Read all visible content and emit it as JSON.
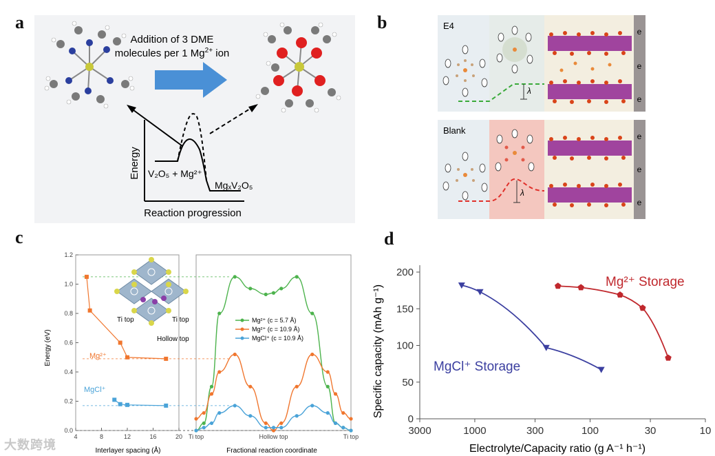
{
  "panels": {
    "a": {
      "letter": "a",
      "arrow_text_line1": "Addition of 3 DME",
      "arrow_text_line2_prefix": "molecules per 1 Mg",
      "arrow_text_line2_sup": "2+",
      "arrow_text_line2_suffix": " ion",
      "y_axis_label": "Energy",
      "x_axis_label": "Reaction progression",
      "reactant_label": "V₂O₅ + Mg²⁺",
      "product_label": "MgₓV₂O₅"
    },
    "b": {
      "letter": "b",
      "top_label": "E4",
      "bottom_label": "Blank",
      "electron_label": "e",
      "lambda_label": "λ"
    },
    "c": {
      "letter": "c",
      "y_axis_label": "Energy (eV)",
      "x_axis_left_label": "Interlayer spacing (Å)",
      "x_axis_right_label": "Fractional reaction coordinate",
      "ti_top_1": "Ti top",
      "ti_top_2": "Ti top",
      "hollow_top": "Hollow top",
      "mg_label": "Mg²⁺",
      "mgcl_label": "MgCl⁺",
      "right_x_ticks": [
        "Ti top",
        "Hollow top",
        "Ti top"
      ],
      "colors": {
        "green": "#4db34d",
        "orange": "#f0762e",
        "blue": "#4aa3d8"
      }
    },
    "d": {
      "letter": "d",
      "mg_label": "Mg²⁺ Storage",
      "mgcl_label": "MgCl⁺ Storage",
      "colors": {
        "mg": "#c0282d",
        "mgcl": "#3b3fa0"
      }
    }
  },
  "watermark": "大数跨境",
  "chart_data": [
    {
      "id": "c-left",
      "type": "scatter",
      "title": "",
      "xlabel": "Interlayer spacing (Å)",
      "ylabel": "Energy (eV)",
      "xlim": [
        4,
        20
      ],
      "ylim": [
        0,
        1.2
      ],
      "x_ticks": [
        4,
        8,
        12,
        16,
        20
      ],
      "y_ticks": [
        0.0,
        0.2,
        0.4,
        0.6,
        0.8,
        1.0,
        1.2
      ],
      "series": [
        {
          "name": "Mg²⁺",
          "color": "#f0762e",
          "x": [
            5.7,
            6.2,
            10.9,
            12.0,
            18.0
          ],
          "y": [
            1.05,
            0.82,
            0.6,
            0.5,
            0.49
          ]
        },
        {
          "name": "MgCl⁺",
          "color": "#4aa3d8",
          "x": [
            10.0,
            10.9,
            12.0,
            18.0
          ],
          "y": [
            0.21,
            0.18,
            0.175,
            0.17
          ]
        }
      ]
    },
    {
      "id": "c-right",
      "type": "line",
      "title": "",
      "xlabel": "Fractional reaction coordinate",
      "ylabel": "Energy (eV)",
      "xlim": [
        0,
        1
      ],
      "ylim": [
        0,
        1.2
      ],
      "legend": [
        "Mg²⁺ (c = 5.7 Å)",
        "Mg²⁺ (c = 10.9 Å)",
        "MgCl⁺ (c = 10.9 Å)"
      ],
      "series": [
        {
          "name": "Mg²⁺ (c = 5.7 Å)",
          "color": "#4db34d",
          "x": [
            0,
            0.05,
            0.1,
            0.15,
            0.25,
            0.35,
            0.45,
            0.5,
            0.55,
            0.65,
            0.75,
            0.85,
            0.9,
            0.95,
            1.0
          ],
          "y": [
            0,
            0.05,
            0.3,
            0.8,
            1.05,
            0.97,
            0.93,
            0.94,
            0.97,
            1.05,
            0.8,
            0.3,
            0.05,
            0.02,
            0
          ]
        },
        {
          "name": "Mg²⁺ (c = 10.9 Å)",
          "color": "#f0762e",
          "x": [
            0,
            0.05,
            0.1,
            0.15,
            0.25,
            0.35,
            0.45,
            0.5,
            0.55,
            0.65,
            0.75,
            0.85,
            0.9,
            0.95,
            1.0
          ],
          "y": [
            0.08,
            0.12,
            0.25,
            0.4,
            0.52,
            0.3,
            0.05,
            0.0,
            0.05,
            0.3,
            0.52,
            0.4,
            0.25,
            0.12,
            0.08
          ]
        },
        {
          "name": "MgCl⁺ (c = 10.9 Å)",
          "color": "#4aa3d8",
          "x": [
            0,
            0.05,
            0.1,
            0.15,
            0.25,
            0.35,
            0.45,
            0.5,
            0.55,
            0.65,
            0.75,
            0.85,
            0.9,
            0.95,
            1.0
          ],
          "y": [
            0,
            0.02,
            0.05,
            0.12,
            0.17,
            0.1,
            0.02,
            0.02,
            0.02,
            0.1,
            0.17,
            0.12,
            0.05,
            0.02,
            0
          ]
        }
      ]
    },
    {
      "id": "d",
      "type": "line",
      "title": "",
      "xlabel": "Electrolyte/Capacity ratio (g A⁻¹ h⁻¹)",
      "ylabel": "Specific capacity (mAh g⁻¹)",
      "x_scale": "log-reversed",
      "xlim": [
        3000,
        10
      ],
      "ylim": [
        0,
        200
      ],
      "x_ticks": [
        3000,
        1000,
        300,
        100,
        30,
        10
      ],
      "y_ticks": [
        0,
        50,
        100,
        150,
        200
      ],
      "series": [
        {
          "name": "Mg²⁺ Storage",
          "color": "#c0282d",
          "marker": "pentagon",
          "x": [
            190,
            120,
            55,
            35,
            21
          ],
          "y": [
            181,
            179,
            169,
            151,
            83
          ]
        },
        {
          "name": "MgCl⁺ Storage",
          "color": "#3b3fa0",
          "marker": "triangle-down",
          "x": [
            1300,
            900,
            240,
            80
          ],
          "y": [
            182,
            173,
            97,
            67
          ]
        }
      ]
    }
  ]
}
